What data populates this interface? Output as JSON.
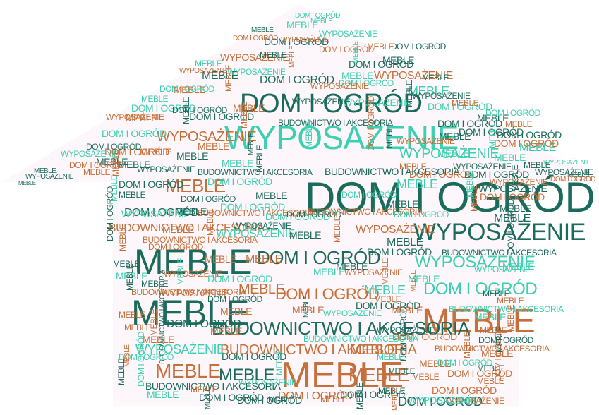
{
  "words": {
    "dom": "Dom i ogród",
    "meble": "Meble",
    "wyposazenie": "Wyposażenie",
    "budownictwo": "Budownictwo i Akcesoria"
  },
  "colors": {
    "dark": "#1b6b5c",
    "teal": "#3ccfb0",
    "orange": "#c5703a",
    "background_tint": "#fbeff5"
  }
}
